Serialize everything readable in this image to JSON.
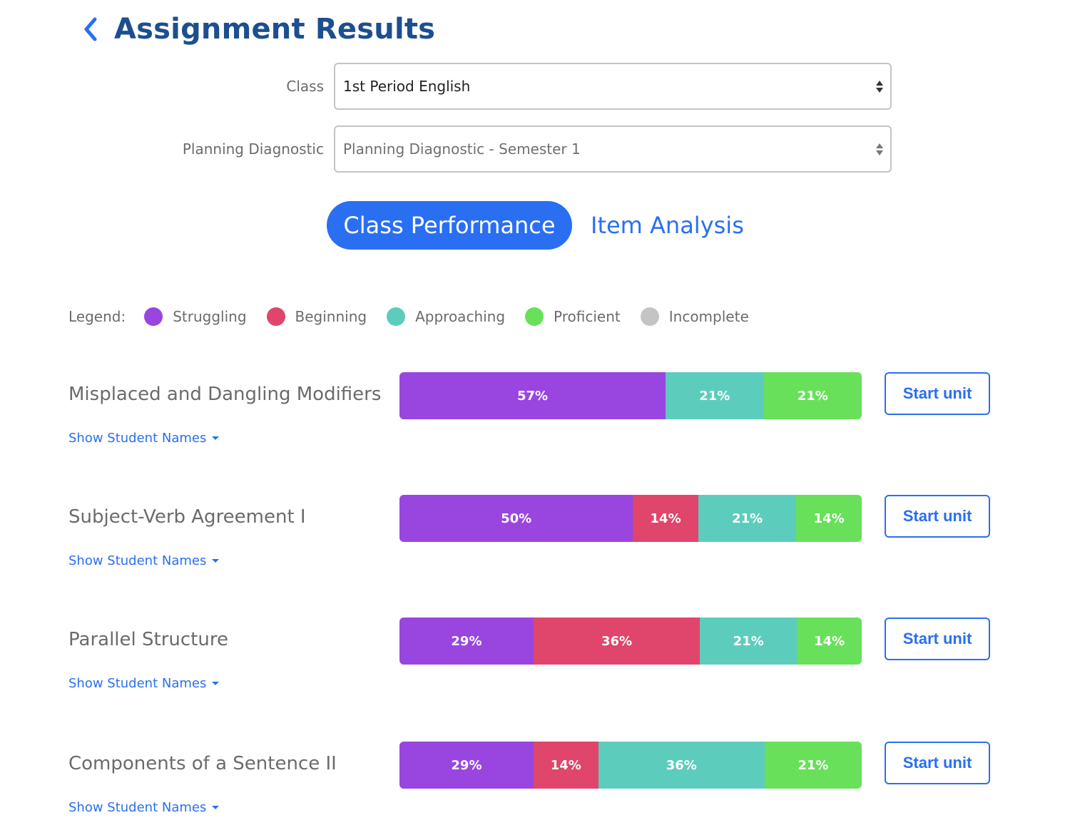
{
  "header": {
    "title": "Assignment Results"
  },
  "filters": {
    "class_label": "Class",
    "class_value": "1st Period English",
    "diagnostic_label": "Planning Diagnostic",
    "diagnostic_value": "Planning Diagnostic - Semester 1"
  },
  "tabs": [
    {
      "label": "Class Performance",
      "active": true
    },
    {
      "label": "Item Analysis",
      "active": false
    }
  ],
  "legend": {
    "label": "Legend:",
    "items": [
      {
        "label": "Struggling",
        "color": "#9945e0"
      },
      {
        "label": "Beginning",
        "color": "#e0456b"
      },
      {
        "label": "Approaching",
        "color": "#5ccdbd"
      },
      {
        "label": "Proficient",
        "color": "#68e05a"
      },
      {
        "label": "Incomplete",
        "color": "#c4c4c4"
      }
    ]
  },
  "units": [
    {
      "title": "Misplaced and Dangling Modifiers",
      "show_names_label": "Show Student Names",
      "start_label": "Start unit",
      "segments": [
        {
          "category": "Struggling",
          "percent": 57,
          "label": "57%"
        },
        {
          "category": "Approaching",
          "percent": 21,
          "label": "21%"
        },
        {
          "category": "Proficient",
          "percent": 21,
          "label": "21%"
        }
      ]
    },
    {
      "title": "Subject-Verb Agreement I",
      "show_names_label": "Show Student Names",
      "start_label": "Start unit",
      "segments": [
        {
          "category": "Struggling",
          "percent": 50,
          "label": "50%"
        },
        {
          "category": "Beginning",
          "percent": 14,
          "label": "14%"
        },
        {
          "category": "Approaching",
          "percent": 21,
          "label": "21%"
        },
        {
          "category": "Proficient",
          "percent": 14,
          "label": "14%"
        }
      ]
    },
    {
      "title": "Parallel Structure",
      "show_names_label": "Show Student Names",
      "start_label": "Start unit",
      "segments": [
        {
          "category": "Struggling",
          "percent": 29,
          "label": "29%"
        },
        {
          "category": "Beginning",
          "percent": 36,
          "label": "36%"
        },
        {
          "category": "Approaching",
          "percent": 21,
          "label": "21%"
        },
        {
          "category": "Proficient",
          "percent": 14,
          "label": "14%"
        }
      ]
    },
    {
      "title": "Components of a Sentence II",
      "show_names_label": "Show Student Names",
      "start_label": "Start unit",
      "segments": [
        {
          "category": "Struggling",
          "percent": 29,
          "label": "29%"
        },
        {
          "category": "Beginning",
          "percent": 14,
          "label": "14%"
        },
        {
          "category": "Approaching",
          "percent": 36,
          "label": "36%"
        },
        {
          "category": "Proficient",
          "percent": 21,
          "label": "21%"
        }
      ]
    }
  ]
}
